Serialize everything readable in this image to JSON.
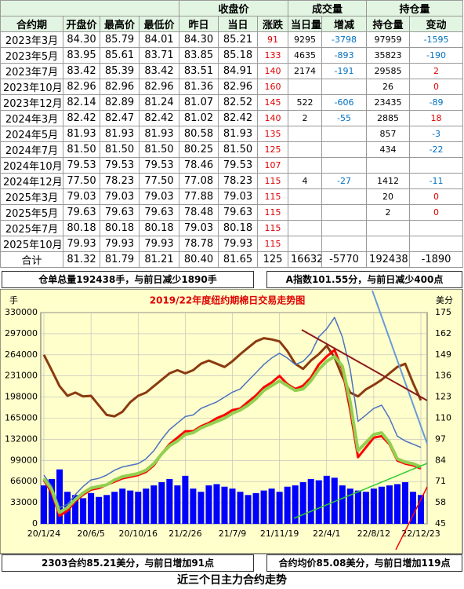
{
  "table": {
    "groups": [
      "收盘价",
      "成交量",
      "持仓量"
    ],
    "header": [
      "合约期",
      "开盘价",
      "最高价",
      "最低价",
      "昨日",
      "当日",
      "涨跌",
      "当日量",
      "增减",
      "持仓量",
      "变动"
    ],
    "rows": [
      [
        "2023年3月",
        "84.30",
        "85.79",
        "84.01",
        "84.30",
        "85.21",
        "91",
        "9295",
        "-3798",
        "97959",
        "-1595"
      ],
      [
        "2023年5月",
        "83.95",
        "85.61",
        "83.71",
        "83.85",
        "85.18",
        "133",
        "4635",
        "-893",
        "35823",
        "-190"
      ],
      [
        "2023年7月",
        "83.42",
        "85.39",
        "83.42",
        "83.51",
        "84.91",
        "140",
        "2174",
        "-191",
        "29585",
        "2"
      ],
      [
        "2023年10月",
        "82.96",
        "82.96",
        "82.96",
        "81.36",
        "82.96",
        "160",
        null,
        null,
        "26",
        "0"
      ],
      [
        "2023年12月",
        "82.14",
        "82.89",
        "81.24",
        "81.07",
        "82.52",
        "145",
        "522",
        "-606",
        "23435",
        "-89"
      ],
      [
        "2024年3月",
        "82.42",
        "82.47",
        "82.42",
        "81.02",
        "82.42",
        "140",
        "2",
        "-55",
        "2885",
        "18"
      ],
      [
        "2024年5月",
        "81.93",
        "81.93",
        "81.93",
        "80.58",
        "81.93",
        "135",
        null,
        null,
        "857",
        "-3"
      ],
      [
        "2024年7月",
        "81.50",
        "81.50",
        "81.50",
        "80.25",
        "81.50",
        "125",
        null,
        null,
        "434",
        "-22"
      ],
      [
        "2024年10月",
        "79.53",
        "79.53",
        "79.53",
        "78.46",
        "79.53",
        "107",
        null,
        null,
        null,
        null
      ],
      [
        "2024年12月",
        "77.50",
        "78.23",
        "77.50",
        "77.08",
        "78.23",
        "115",
        "4",
        "-27",
        "1412",
        "-11"
      ],
      [
        "2025年3月",
        "79.03",
        "79.03",
        "79.03",
        "77.88",
        "79.03",
        "115",
        null,
        null,
        "20",
        "0"
      ],
      [
        "2025年5月",
        "79.63",
        "79.63",
        "79.63",
        "78.48",
        "79.63",
        "115",
        null,
        null,
        "2",
        "0"
      ],
      [
        "2025年7月",
        "80.18",
        "80.18",
        "80.18",
        "79.03",
        "80.18",
        "115",
        null,
        null,
        null,
        null
      ],
      [
        "2025年10月",
        "79.93",
        "79.93",
        "79.93",
        "78.78",
        "79.93",
        "115",
        null,
        null,
        null,
        null
      ],
      [
        "合计",
        "81.32",
        "81.79",
        "81.21",
        "80.40",
        "81.65",
        "125",
        "16632",
        "-5770",
        "192438",
        "-1890"
      ]
    ]
  },
  "notes": {
    "top_left": "仓单总量192438手，与前日减少1890手",
    "top_right": "A指数101.55分，与前日减少400点",
    "bottom_left": "2303合约85.21美分，与前日增加91点",
    "bottom_right": "合约均价85.08美分，与前日增加119点",
    "footer": "近三个日主力合约走势"
  },
  "chart_data": {
    "type": "line",
    "title": "2019/22年度纽约期棉日交易走势图",
    "y_label": "手",
    "y2_label": "美分",
    "categories": [
      "20/1/24",
      null,
      null,
      null,
      null,
      null,
      "20/6/5",
      null,
      null,
      null,
      null,
      null,
      "20/10/16",
      null,
      null,
      null,
      null,
      null,
      "21/2/26",
      null,
      null,
      null,
      null,
      null,
      "21/7/9",
      null,
      null,
      null,
      null,
      null,
      "21/11/19",
      null,
      null,
      null,
      null,
      null,
      "22/4/1",
      null,
      null,
      null,
      null,
      null,
      "22/8/12",
      null,
      null,
      null,
      null,
      null,
      "22/12/23"
    ],
    "ylim": [
      0,
      330000
    ],
    "yticks": [
      0,
      33000,
      66000,
      99000,
      132000,
      165000,
      198000,
      231000,
      264000,
      297000,
      330000
    ],
    "y2lim": [
      45,
      175
    ],
    "y2ticks": [
      45,
      58,
      71,
      84,
      97,
      110,
      123,
      136,
      149,
      162,
      175
    ],
    "series": [
      {
        "type": "bar",
        "color": "#0000ff",
        "values": [
          60000,
          70000,
          85000,
          50000,
          45000,
          40000,
          48000,
          42000,
          45000,
          50000,
          55000,
          52000,
          50000,
          55000,
          60000,
          65000,
          70000,
          60000,
          75000,
          55000,
          50000,
          60000,
          62000,
          58000,
          55000,
          50000,
          45000,
          48000,
          52000,
          55000,
          50000,
          58000,
          60000,
          65000,
          70000,
          68000,
          75000,
          72000,
          60000,
          55000,
          52000,
          50000,
          55000,
          58000,
          60000,
          62000,
          65000,
          50000,
          45000
        ]
      },
      {
        "type": "line",
        "color": "#8b3a0f",
        "width": 3,
        "values": [
          264000,
          240000,
          215000,
          200000,
          205000,
          199000,
          200000,
          185000,
          170000,
          168000,
          175000,
          190000,
          200000,
          205000,
          215000,
          225000,
          235000,
          240000,
          235000,
          240000,
          250000,
          255000,
          250000,
          245000,
          254000,
          265000,
          275000,
          285000,
          290000,
          288000,
          285000,
          270000,
          250000,
          242000,
          255000,
          265000,
          278000,
          260000,
          230000,
          205000,
          199000,
          210000,
          217000,
          225000,
          235000,
          245000,
          250000,
          220000,
          193000
        ]
      },
      {
        "type": "line",
        "axis": "y2",
        "color": "#4a72c0",
        "width": 1.5,
        "values": [
          75,
          68,
          55,
          57,
          63,
          68,
          72,
          73,
          75,
          78,
          80,
          81,
          82,
          85,
          90,
          97,
          103,
          107,
          111,
          112,
          116,
          118,
          120,
          123,
          126,
          128,
          133,
          138,
          143,
          147,
          150,
          147,
          143,
          145,
          150,
          160,
          165,
          172,
          160,
          140,
          108,
          112,
          116,
          118,
          110,
          99,
          96,
          94,
          92
        ]
      },
      {
        "type": "line",
        "axis": "y2",
        "color": "#ff0000",
        "width": 3,
        "values": [
          72,
          64,
          50,
          53,
          59,
          63,
          66,
          67,
          69,
          71,
          73,
          74,
          75,
          77,
          81,
          88,
          94,
          98,
          102,
          102,
          105,
          107,
          110,
          112,
          115,
          116,
          120,
          124,
          129,
          132,
          136,
          131,
          128,
          130,
          135,
          143,
          148,
          152,
          140,
          115,
          86,
          92,
          98,
          99,
          94,
          84,
          82,
          81,
          79
        ]
      },
      {
        "type": "line",
        "axis": "y2",
        "color": "#92d050",
        "width": 4,
        "values": [
          73,
          66,
          52,
          55,
          60,
          64,
          67,
          68,
          69,
          72,
          74,
          75,
          76,
          78,
          82,
          88,
          93,
          96,
          100,
          101,
          104,
          106,
          108,
          110,
          113,
          115,
          118,
          122,
          127,
          130,
          133,
          130,
          127,
          128,
          133,
          140,
          145,
          148,
          142,
          120,
          90,
          95,
          100,
          101,
          95,
          85,
          83,
          82,
          80
        ]
      }
    ]
  }
}
